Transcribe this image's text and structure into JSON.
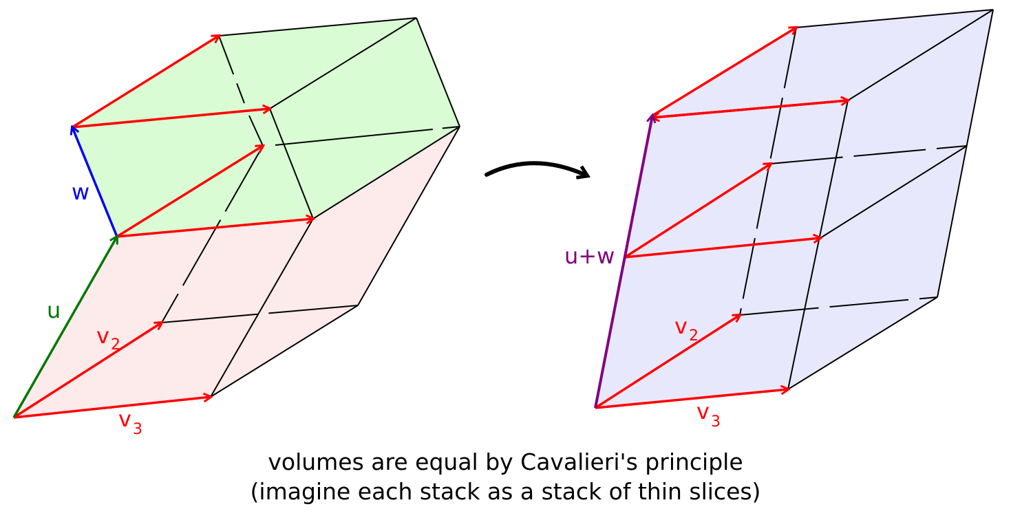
{
  "labels": {
    "w": "w",
    "u": "u",
    "v2_left_main": "v",
    "v2_left_sub": "2",
    "v3_left_main": "v",
    "v3_left_sub": "3",
    "u_plus_w": "u+w",
    "v2_right_main": "v",
    "v2_right_sub": "2",
    "v3_right_main": "v",
    "v3_right_sub": "3"
  },
  "caption": {
    "line1": "volumes are equal by Cavalieri's principle",
    "line2": "(imagine each stack as a stack of thin slices)"
  },
  "colors": {
    "green_fill": "#d9fcd4",
    "pink_fill": "#fdeaea",
    "lavender_fill": "#e8e8fc",
    "edge": "#000000",
    "red": "#ff0000",
    "blue": "#0000ee",
    "green": "#007700",
    "purple": "#800080"
  }
}
